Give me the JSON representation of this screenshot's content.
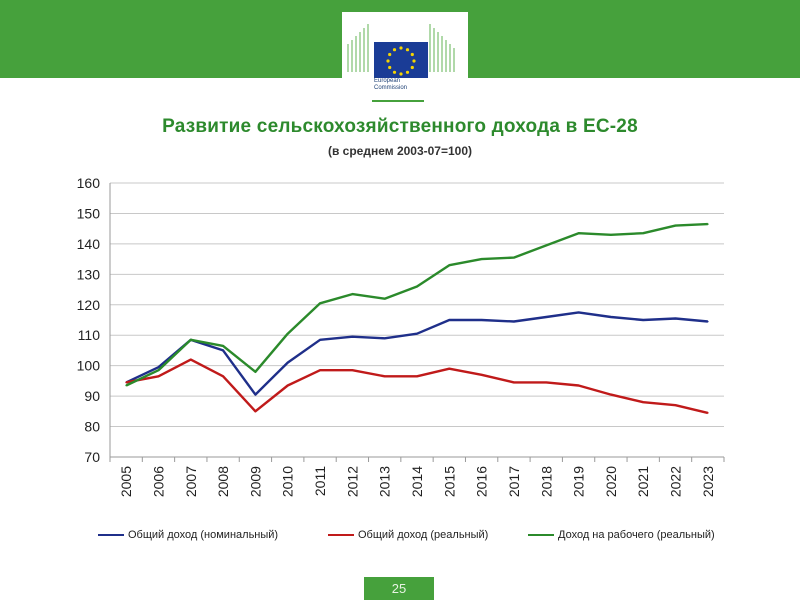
{
  "header": {
    "brand_color": "#46a13c",
    "logo_icon": "european-commission-logo",
    "logo_text_line1": "European",
    "logo_text_line2": "Commission"
  },
  "chart_data": {
    "type": "line",
    "title": "Развитие сельскохозяйственного дохода в ЕС-28",
    "subtitle": "(в среднем 2003-07=100)",
    "xlabel": "",
    "ylabel": "",
    "x": [
      "2005",
      "2006",
      "2007",
      "2008",
      "2009",
      "2010",
      "2011",
      "2012",
      "2013",
      "2014",
      "2015",
      "2016",
      "2017",
      "2018",
      "2019",
      "2020",
      "2021",
      "2022",
      "2023"
    ],
    "ylim": [
      70,
      160
    ],
    "yticks": [
      70,
      80,
      90,
      100,
      110,
      120,
      130,
      140,
      150,
      160
    ],
    "grid": true,
    "legend_position": "bottom",
    "series": [
      {
        "name": "Общий доход (номинальный)",
        "color": "#1f2f8a",
        "values": [
          94.5,
          99.5,
          108.5,
          105.0,
          90.5,
          101.0,
          108.5,
          109.5,
          109.0,
          110.5,
          115.0,
          115.0,
          114.5,
          116.0,
          117.5,
          116.0,
          115.0,
          115.5,
          114.5
        ]
      },
      {
        "name": "Общий доход (реальный)",
        "color": "#c01a1a",
        "values": [
          94.5,
          96.5,
          102.0,
          96.5,
          85.0,
          93.5,
          98.5,
          98.5,
          96.5,
          96.5,
          99.0,
          97.0,
          94.5,
          94.5,
          93.5,
          90.5,
          88.0,
          87.0,
          84.5
        ]
      },
      {
        "name": "Доход на рабочего (реальный)",
        "color": "#2b8a2b",
        "values": [
          93.5,
          98.5,
          108.5,
          106.5,
          98.0,
          110.5,
          120.5,
          123.5,
          122.0,
          126.0,
          133.0,
          135.0,
          135.5,
          139.5,
          143.5,
          143.0,
          143.5,
          146.0,
          146.5
        ]
      }
    ]
  },
  "footer": {
    "page_number": "25"
  }
}
